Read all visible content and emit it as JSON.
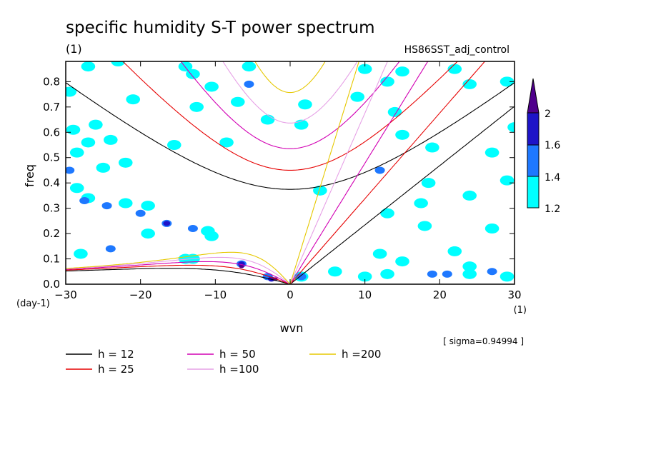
{
  "chart_data": {
    "type": "heatmap",
    "title": "specific humidity S-T power spectrum",
    "units_label": "(1)",
    "run_label": "HS86SST_adj_control",
    "xlabel": "wvn",
    "ylabel": "freq",
    "x_unit_label": "(1)",
    "y_unit_label": "(day-1)",
    "xlim": [
      -30,
      30
    ],
    "ylim": [
      0,
      0.88
    ],
    "xticks": [
      -30,
      -20,
      -10,
      0,
      10,
      20,
      30
    ],
    "yticks": [
      0.0,
      0.1,
      0.2,
      0.3,
      0.4,
      0.5,
      0.6,
      0.7,
      0.8
    ],
    "ytick_labels": [
      "0.0",
      "0.1",
      "0.2",
      "0.3",
      "0.4",
      "0.5",
      "0.6",
      "0.7",
      "0.8"
    ],
    "sigma_text": "[ sigma=0.94994 ]",
    "colorbar": {
      "levels": [
        "1.2",
        "1.4",
        "1.6",
        "2"
      ],
      "colors": [
        "#00ffff",
        "#1e78ff",
        "#1e14c8",
        "#50008c"
      ]
    },
    "dispersion_curves": [
      {
        "label": "h = 12",
        "h": 12,
        "color": "#000000"
      },
      {
        "label": "h = 25",
        "h": 25,
        "color": "#e60000"
      },
      {
        "label": "h = 50",
        "h": 50,
        "color": "#d200b4"
      },
      {
        "label": "h =100",
        "h": 100,
        "color": "#e6a0e6"
      },
      {
        "label": "h =200",
        "h": 200,
        "color": "#e6c800"
      }
    ],
    "significant_patches": [
      {
        "x": -29.5,
        "y": 0.76,
        "level": 1
      },
      {
        "x": -29,
        "y": 0.61,
        "level": 1
      },
      {
        "x": -28.5,
        "y": 0.52,
        "level": 1
      },
      {
        "x": -29.5,
        "y": 0.45,
        "level": 2
      },
      {
        "x": -28.5,
        "y": 0.38,
        "level": 1
      },
      {
        "x": -26,
        "y": 0.63,
        "level": 1
      },
      {
        "x": -27,
        "y": 0.56,
        "level": 1
      },
      {
        "x": -24,
        "y": 0.57,
        "level": 1
      },
      {
        "x": -25,
        "y": 0.46,
        "level": 1
      },
      {
        "x": -22,
        "y": 0.48,
        "level": 1
      },
      {
        "x": -27,
        "y": 0.34,
        "level": 1
      },
      {
        "x": -27.5,
        "y": 0.33,
        "level": 2
      },
      {
        "x": -24.5,
        "y": 0.31,
        "level": 2
      },
      {
        "x": -22,
        "y": 0.32,
        "level": 1
      },
      {
        "x": -19,
        "y": 0.31,
        "level": 1
      },
      {
        "x": -20,
        "y": 0.28,
        "level": 2
      },
      {
        "x": -16.5,
        "y": 0.24,
        "level": 2
      },
      {
        "x": -16.5,
        "y": 0.24,
        "level": 3
      },
      {
        "x": -13,
        "y": 0.22,
        "level": 2
      },
      {
        "x": -11,
        "y": 0.21,
        "level": 1
      },
      {
        "x": -19,
        "y": 0.2,
        "level": 1
      },
      {
        "x": -10.5,
        "y": 0.19,
        "level": 1
      },
      {
        "x": -24,
        "y": 0.14,
        "level": 2
      },
      {
        "x": -28,
        "y": 0.12,
        "level": 1
      },
      {
        "x": -14,
        "y": 0.1,
        "level": 1
      },
      {
        "x": -13,
        "y": 0.1,
        "level": 1
      },
      {
        "x": -6.5,
        "y": 0.08,
        "level": 2
      },
      {
        "x": -6.5,
        "y": 0.08,
        "level": 3
      },
      {
        "x": -6.5,
        "y": 0.07,
        "level": 4
      },
      {
        "x": -3,
        "y": 0.03,
        "level": 2
      },
      {
        "x": -2.5,
        "y": 0.02,
        "level": 3
      },
      {
        "x": -2,
        "y": 0.02,
        "level": 4
      },
      {
        "x": 1.5,
        "y": 0.03,
        "level": 1
      },
      {
        "x": 1.5,
        "y": 0.03,
        "level": 2
      },
      {
        "x": 6,
        "y": 0.05,
        "level": 1
      },
      {
        "x": 10,
        "y": 0.03,
        "level": 1
      },
      {
        "x": 13,
        "y": 0.04,
        "level": 1
      },
      {
        "x": 19,
        "y": 0.04,
        "level": 2
      },
      {
        "x": 21,
        "y": 0.04,
        "level": 2
      },
      {
        "x": 24,
        "y": 0.04,
        "level": 1
      },
      {
        "x": 27,
        "y": 0.05,
        "level": 2
      },
      {
        "x": 24,
        "y": 0.07,
        "level": 1
      },
      {
        "x": 29,
        "y": 0.03,
        "level": 1
      },
      {
        "x": 15,
        "y": 0.09,
        "level": 1
      },
      {
        "x": 12,
        "y": 0.12,
        "level": 1
      },
      {
        "x": 22,
        "y": 0.13,
        "level": 1
      },
      {
        "x": 27,
        "y": 0.22,
        "level": 1
      },
      {
        "x": 18,
        "y": 0.23,
        "level": 1
      },
      {
        "x": 13,
        "y": 0.28,
        "level": 1
      },
      {
        "x": 17.5,
        "y": 0.32,
        "level": 1
      },
      {
        "x": 24,
        "y": 0.35,
        "level": 1
      },
      {
        "x": 29,
        "y": 0.41,
        "level": 1
      },
      {
        "x": 18.5,
        "y": 0.4,
        "level": 1
      },
      {
        "x": 12,
        "y": 0.45,
        "level": 2
      },
      {
        "x": 27,
        "y": 0.52,
        "level": 1
      },
      {
        "x": 19,
        "y": 0.54,
        "level": 1
      },
      {
        "x": 30,
        "y": 0.62,
        "level": 1
      },
      {
        "x": 15,
        "y": 0.59,
        "level": 1
      },
      {
        "x": 14,
        "y": 0.68,
        "level": 1
      },
      {
        "x": 24,
        "y": 0.79,
        "level": 1
      },
      {
        "x": 29,
        "y": 0.8,
        "level": 1
      },
      {
        "x": 13,
        "y": 0.8,
        "level": 1
      },
      {
        "x": 15,
        "y": 0.84,
        "level": 1
      },
      {
        "x": 22,
        "y": 0.85,
        "level": 1
      },
      {
        "x": 9,
        "y": 0.74,
        "level": 1
      },
      {
        "x": 10,
        "y": 0.85,
        "level": 1
      },
      {
        "x": -5.5,
        "y": 0.86,
        "level": 1
      },
      {
        "x": -13,
        "y": 0.83,
        "level": 1
      },
      {
        "x": -10.5,
        "y": 0.78,
        "level": 1
      },
      {
        "x": -5.5,
        "y": 0.79,
        "level": 2
      },
      {
        "x": -7,
        "y": 0.72,
        "level": 1
      },
      {
        "x": -12.5,
        "y": 0.7,
        "level": 1
      },
      {
        "x": 1.5,
        "y": 0.63,
        "level": 1
      },
      {
        "x": 2,
        "y": 0.71,
        "level": 1
      },
      {
        "x": -3,
        "y": 0.65,
        "level": 1
      },
      {
        "x": -23,
        "y": 0.88,
        "level": 1
      },
      {
        "x": -27,
        "y": 0.86,
        "level": 1
      },
      {
        "x": -14,
        "y": 0.86,
        "level": 1
      },
      {
        "x": -8.5,
        "y": 0.56,
        "level": 1
      },
      {
        "x": -15.5,
        "y": 0.55,
        "level": 1
      },
      {
        "x": 4,
        "y": 0.37,
        "level": 1
      },
      {
        "x": -21,
        "y": 0.73,
        "level": 1
      }
    ]
  }
}
